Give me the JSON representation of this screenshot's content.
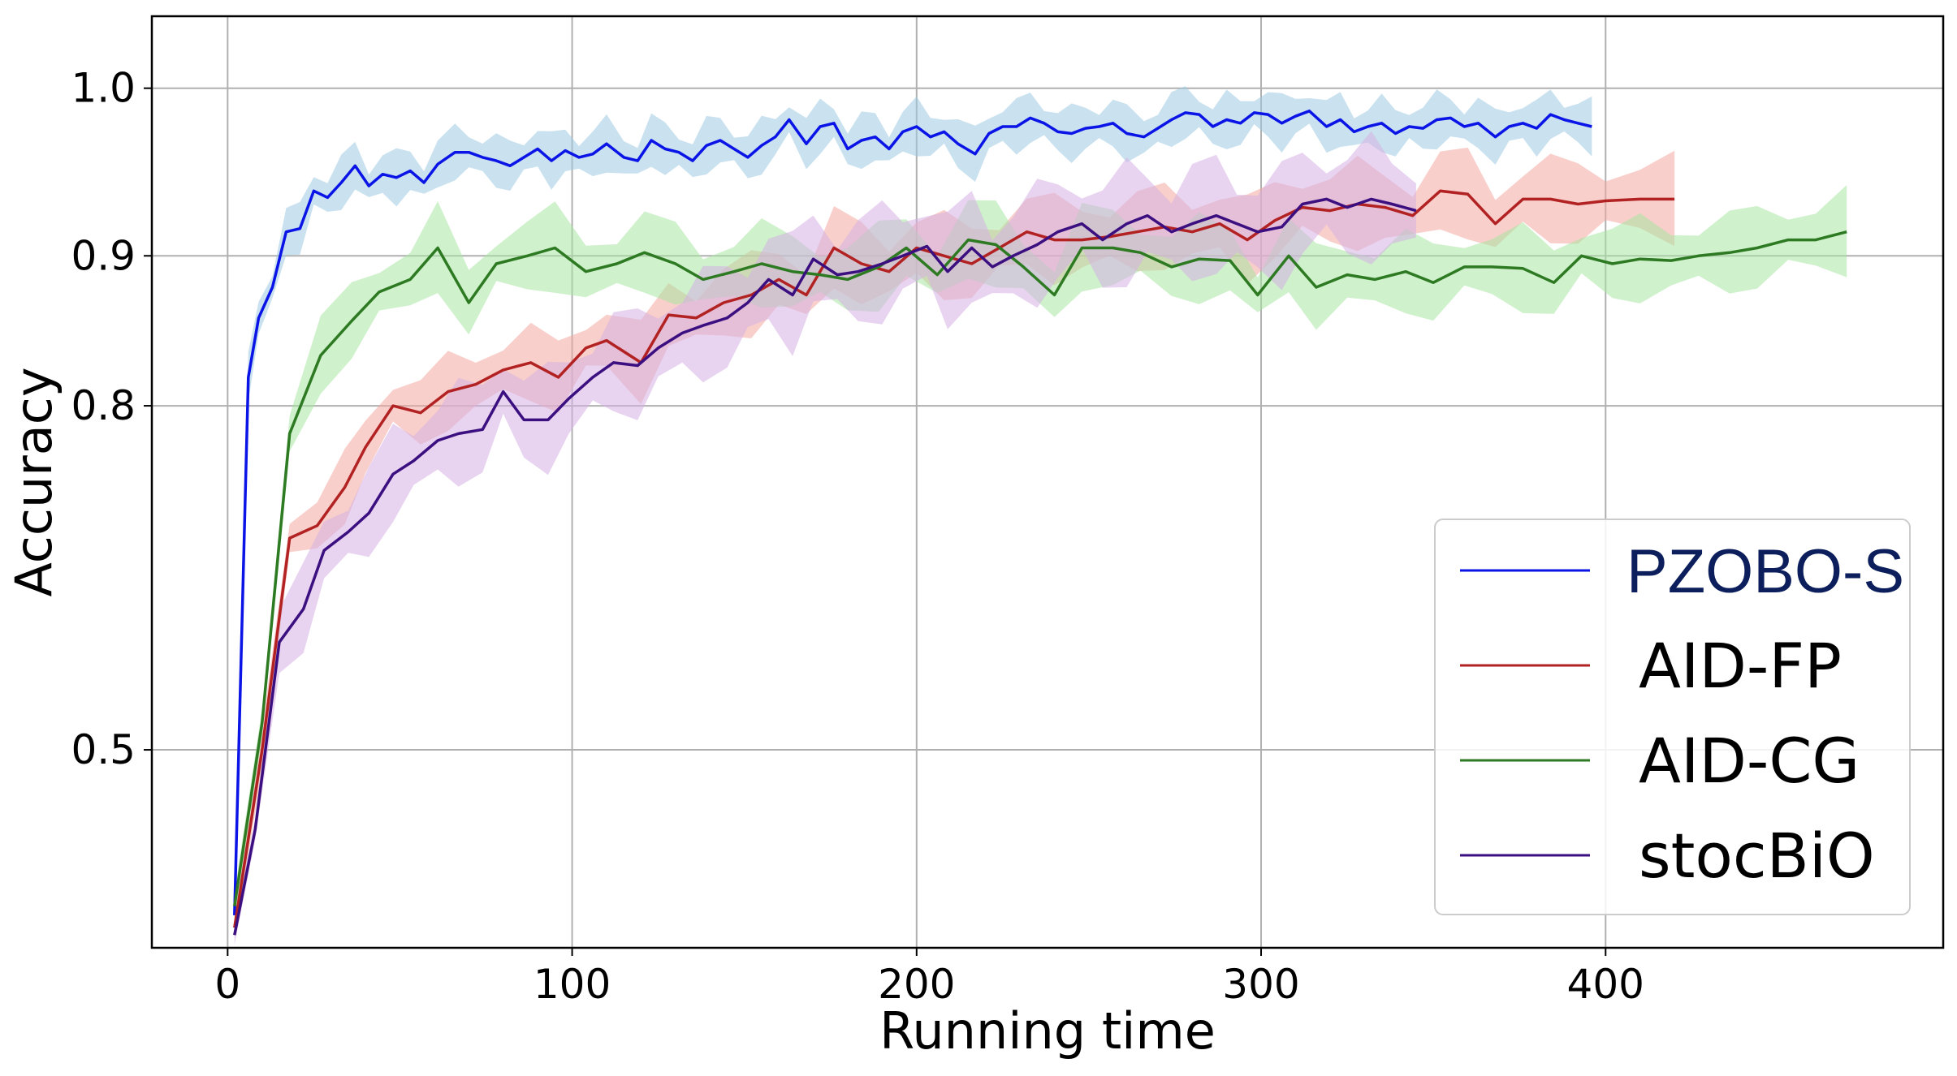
{
  "chart_data": {
    "type": "line",
    "xlabel": "Running time",
    "ylabel": "Accuracy",
    "xlim": [
      -22,
      498
    ],
    "ylim": [
      0.16,
      1.04
    ],
    "y_scale": "squared",
    "xticks": [
      {
        "value": 0,
        "label": "0"
      },
      {
        "value": 100,
        "label": "100"
      },
      {
        "value": 200,
        "label": "200"
      },
      {
        "value": 300,
        "label": "300"
      },
      {
        "value": 400,
        "label": "400"
      }
    ],
    "yticks": [
      {
        "value": 0.5,
        "label": "0.5"
      },
      {
        "value": 0.8,
        "label": "0.8"
      },
      {
        "value": 0.9,
        "label": "0.9"
      },
      {
        "value": 1.0,
        "label": "1.0"
      }
    ],
    "grid": true,
    "legend_position": "lower-right",
    "series": [
      {
        "name": "PZOBO-S",
        "color": "#0a14e6",
        "band_color": "#9ecae1",
        "legend_text_color": "#0c1f5c",
        "x": [
          2,
          6,
          9,
          13,
          17,
          21,
          25,
          29,
          33,
          37,
          41,
          45,
          49,
          53,
          57,
          61,
          66,
          70,
          74,
          78,
          82,
          86,
          90,
          94,
          98,
          102,
          106,
          110,
          115,
          119,
          123,
          127,
          131,
          135,
          139,
          143,
          147,
          151,
          155,
          159,
          163,
          168,
          172,
          176,
          180,
          184,
          188,
          192,
          196,
          200,
          204,
          208,
          212,
          217,
          221,
          225,
          229,
          233,
          237,
          241,
          245,
          249,
          253,
          257,
          261,
          266,
          270,
          274,
          278,
          282,
          286,
          290,
          294,
          298,
          302,
          306,
          310,
          314,
          319,
          323,
          327,
          331,
          335,
          339,
          343,
          347,
          351,
          355,
          359,
          363,
          368,
          372,
          376,
          380,
          384,
          388,
          392,
          396
        ],
        "y": [
          0.25,
          0.82,
          0.86,
          0.88,
          0.915,
          0.917,
          0.94,
          0.936,
          0.945,
          0.955,
          0.943,
          0.95,
          0.948,
          0.952,
          0.945,
          0.956,
          0.963,
          0.963,
          0.96,
          0.958,
          0.955,
          0.96,
          0.965,
          0.958,
          0.964,
          0.96,
          0.962,
          0.968,
          0.96,
          0.958,
          0.97,
          0.965,
          0.963,
          0.958,
          0.967,
          0.97,
          0.965,
          0.96,
          0.967,
          0.972,
          0.982,
          0.968,
          0.978,
          0.98,
          0.965,
          0.97,
          0.972,
          0.965,
          0.975,
          0.978,
          0.972,
          0.975,
          0.968,
          0.962,
          0.974,
          0.978,
          0.978,
          0.983,
          0.98,
          0.975,
          0.974,
          0.977,
          0.978,
          0.98,
          0.974,
          0.972,
          0.977,
          0.982,
          0.986,
          0.985,
          0.978,
          0.982,
          0.98,
          0.986,
          0.985,
          0.98,
          0.984,
          0.987,
          0.978,
          0.982,
          0.975,
          0.978,
          0.98,
          0.974,
          0.978,
          0.977,
          0.982,
          0.983,
          0.978,
          0.98,
          0.972,
          0.978,
          0.98,
          0.977,
          0.985,
          0.982,
          0.98,
          0.978
        ],
        "band": 0.012
      },
      {
        "name": "AID-FP",
        "color": "#b22222",
        "band_color": "#f4a7a0",
        "legend_text_color": "#000000",
        "x": [
          2,
          10,
          18,
          26,
          34,
          40,
          48,
          56,
          64,
          72,
          80,
          88,
          96,
          104,
          110,
          120,
          128,
          136,
          144,
          152,
          160,
          168,
          176,
          184,
          192,
          200,
          208,
          216,
          224,
          232,
          240,
          248,
          256,
          264,
          272,
          280,
          288,
          296,
          304,
          312,
          320,
          328,
          336,
          344,
          352,
          360,
          368,
          376,
          384,
          392,
          400,
          410,
          420
        ],
        "y": [
          0.22,
          0.5,
          0.7,
          0.71,
          0.74,
          0.77,
          0.8,
          0.795,
          0.81,
          0.815,
          0.825,
          0.83,
          0.82,
          0.84,
          0.845,
          0.83,
          0.862,
          0.86,
          0.87,
          0.875,
          0.885,
          0.875,
          0.905,
          0.895,
          0.89,
          0.905,
          0.9,
          0.895,
          0.905,
          0.915,
          0.91,
          0.91,
          0.912,
          0.915,
          0.918,
          0.915,
          0.92,
          0.91,
          0.922,
          0.93,
          0.928,
          0.932,
          0.93,
          0.925,
          0.94,
          0.938,
          0.92,
          0.935,
          0.935,
          0.932,
          0.934,
          0.935,
          0.935
        ],
        "band": 0.02
      },
      {
        "name": "AID-CG",
        "color": "#2d7a23",
        "band_color": "#a8e6a3",
        "legend_text_color": "#000000",
        "x": [
          2,
          10,
          18,
          27,
          36,
          44,
          53,
          61,
          70,
          78,
          87,
          95,
          104,
          113,
          121,
          130,
          138,
          147,
          155,
          164,
          172,
          180,
          189,
          197,
          206,
          215,
          223,
          231,
          240,
          248,
          257,
          265,
          274,
          282,
          291,
          299,
          308,
          316,
          325,
          333,
          342,
          350,
          359,
          367,
          376,
          385,
          393,
          402,
          410,
          419,
          427,
          436,
          444,
          453,
          461,
          470
        ],
        "y": [
          0.27,
          0.53,
          0.78,
          0.835,
          0.858,
          0.877,
          0.885,
          0.905,
          0.87,
          0.895,
          0.9,
          0.905,
          0.89,
          0.895,
          0.902,
          0.895,
          0.885,
          0.89,
          0.895,
          0.89,
          0.888,
          0.885,
          0.893,
          0.905,
          0.888,
          0.91,
          0.907,
          0.893,
          0.875,
          0.905,
          0.905,
          0.902,
          0.893,
          0.898,
          0.897,
          0.875,
          0.9,
          0.88,
          0.888,
          0.885,
          0.89,
          0.883,
          0.893,
          0.893,
          0.892,
          0.883,
          0.9,
          0.895,
          0.898,
          0.897,
          0.9,
          0.902,
          0.905,
          0.91,
          0.91,
          0.915
        ],
        "band": 0.02
      },
      {
        "name": "stocBiO",
        "color": "#3b0f80",
        "band_color": "#d6b0e3",
        "legend_text_color": "#000000",
        "x": [
          2,
          8,
          15,
          22,
          28,
          35,
          41,
          48,
          54,
          61,
          67,
          74,
          80,
          86,
          93,
          99,
          106,
          112,
          119,
          125,
          132,
          138,
          145,
          151,
          157,
          164,
          170,
          177,
          183,
          190,
          196,
          203,
          209,
          216,
          222,
          228,
          235,
          241,
          248,
          254,
          261,
          267,
          274,
          280,
          287,
          293,
          299,
          306,
          312,
          319,
          325,
          332,
          338,
          345
        ],
        "y": [
          0.2,
          0.4,
          0.61,
          0.64,
          0.69,
          0.705,
          0.72,
          0.75,
          0.76,
          0.775,
          0.78,
          0.783,
          0.81,
          0.79,
          0.79,
          0.805,
          0.82,
          0.83,
          0.828,
          0.84,
          0.85,
          0.855,
          0.86,
          0.87,
          0.885,
          0.875,
          0.898,
          0.888,
          0.89,
          0.895,
          0.9,
          0.906,
          0.89,
          0.905,
          0.893,
          0.9,
          0.907,
          0.915,
          0.92,
          0.91,
          0.92,
          0.925,
          0.915,
          0.92,
          0.925,
          0.92,
          0.915,
          0.918,
          0.932,
          0.935,
          0.93,
          0.935,
          0.932,
          0.928
        ],
        "band": 0.028
      }
    ]
  }
}
